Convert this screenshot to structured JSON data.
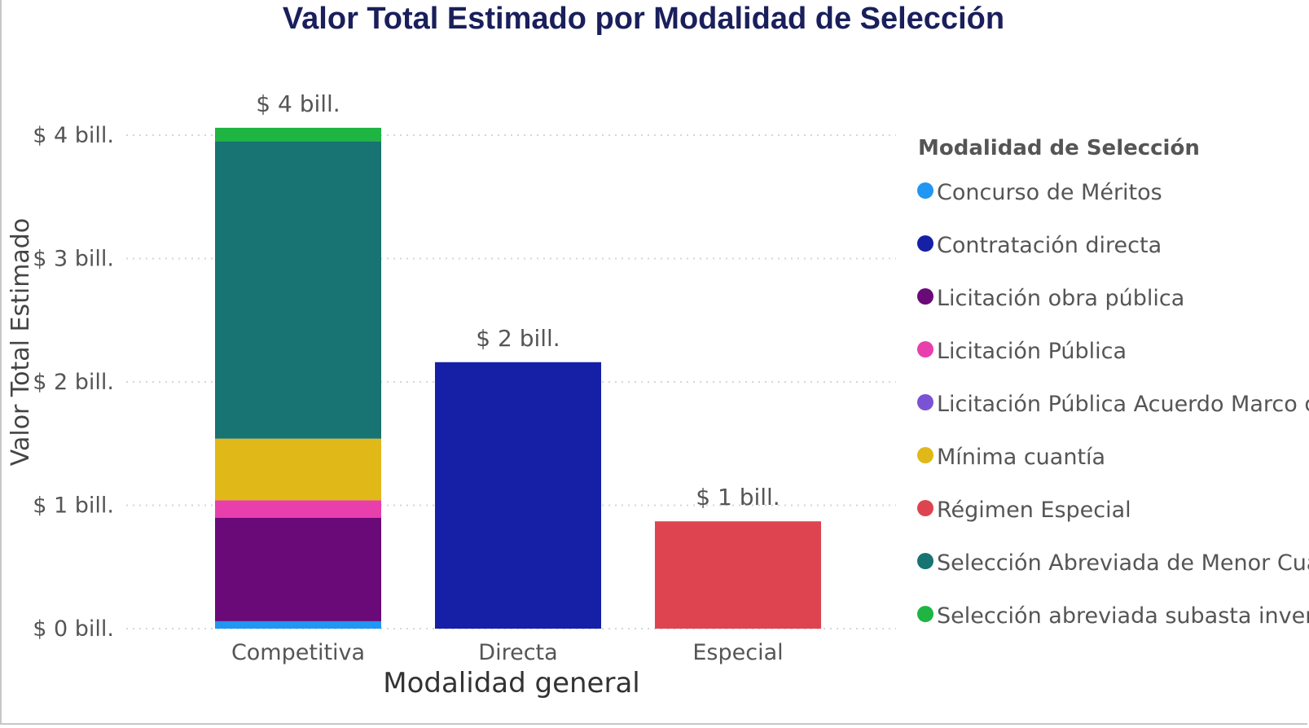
{
  "chart_data": {
    "type": "bar",
    "stacked": true,
    "title": "Valor Total Estimado por Modalidad de Selección",
    "xlabel": "Modalidad general",
    "ylabel": "Valor Total Estimado",
    "categories": [
      "Competitiva",
      "Directa",
      "Especial"
    ],
    "ylim": [
      0,
      4
    ],
    "yticks": [
      0,
      1,
      2,
      3,
      4
    ],
    "ytick_labels": [
      "$ 0 bill.",
      "$ 1 bill.",
      "$ 2 bill.",
      "$ 3 bill.",
      "$ 4 bill."
    ],
    "total_labels": [
      "$ 4 bill.",
      "$ 2 bill.",
      "$ 1 bill."
    ],
    "legend_title": "Modalidad de Selección",
    "legend_position": "right",
    "series": [
      {
        "name": "Concurso de Méritos",
        "color": "#2196f3",
        "values": [
          0.06,
          0,
          0
        ]
      },
      {
        "name": "Contratación directa",
        "color": "#1520a6",
        "values": [
          0,
          2.16,
          0
        ]
      },
      {
        "name": "Licitación obra pública",
        "color": "#6a0a78",
        "values": [
          0.84,
          0,
          0
        ]
      },
      {
        "name": "Licitación Pública",
        "color": "#e83fad",
        "values": [
          0.14,
          0,
          0
        ]
      },
      {
        "name": "Licitación Pública Acuerdo Marco de P...",
        "color": "#7a52d4",
        "values": [
          0,
          0,
          0
        ]
      },
      {
        "name": "Mínima cuantía",
        "color": "#e0b818",
        "values": [
          0.5,
          0,
          0
        ]
      },
      {
        "name": "Régimen Especial",
        "color": "#dd4450",
        "values": [
          0,
          0,
          0.87
        ]
      },
      {
        "name": "Selección Abreviada de Menor Cuantía",
        "color": "#187373",
        "values": [
          2.41,
          0,
          0
        ]
      },
      {
        "name": "Selección abreviada subasta inversa",
        "color": "#1fb542",
        "values": [
          0.11,
          0,
          0
        ]
      }
    ]
  }
}
